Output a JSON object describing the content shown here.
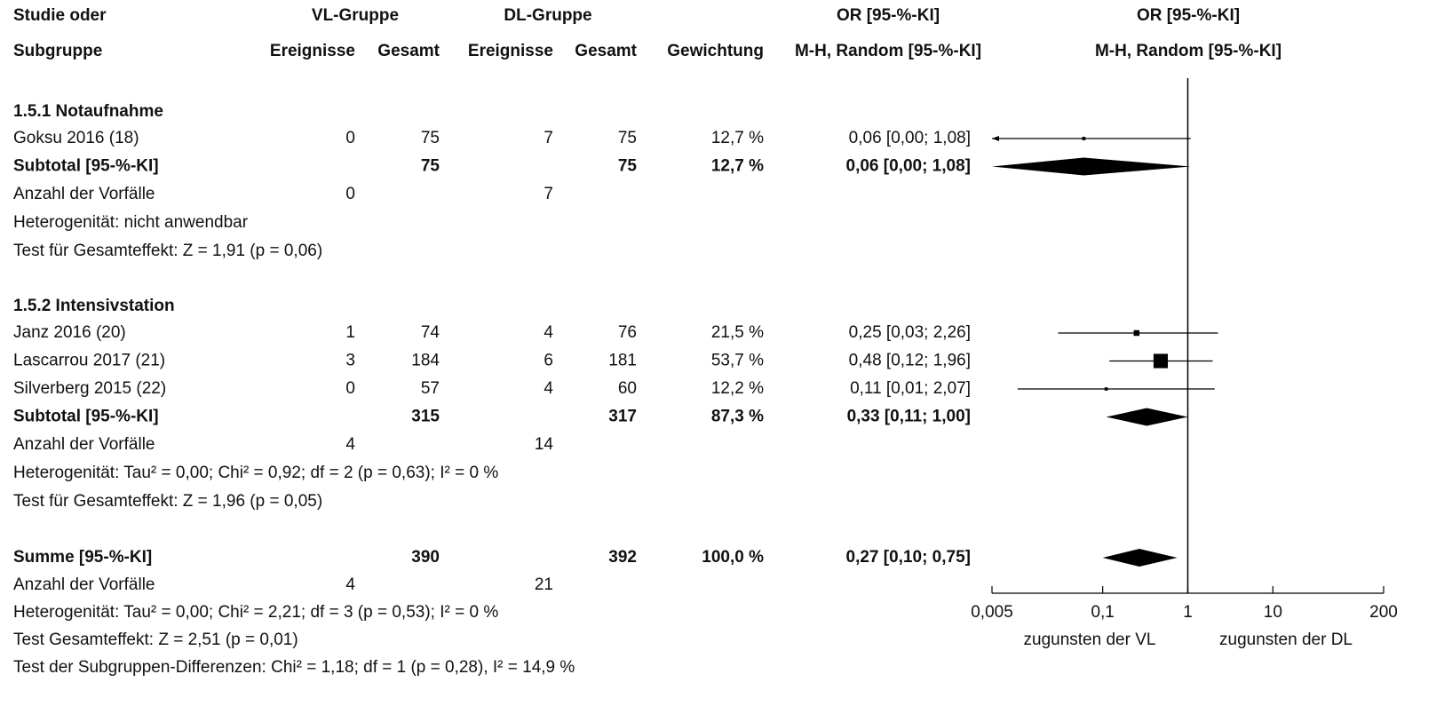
{
  "chart_data": {
    "type": "forest",
    "header": {
      "study": "Studie oder",
      "subgroup": "Subgruppe",
      "vl_group": "VL-Gruppe",
      "dl_group": "DL-Gruppe",
      "events": "Ereignisse",
      "total": "Gesamt",
      "weight": "Gewichtung",
      "or_title": "OR [95-%-KI]",
      "or_method": "M-H, Random [95-%-KI]"
    },
    "groups": [
      {
        "title": "1.5.1 Notaufnahme",
        "studies": [
          {
            "name": "Goksu 2016 (18)",
            "vl_events": 0,
            "vl_total": 75,
            "dl_events": 7,
            "dl_total": 75,
            "weight": 12.7,
            "weight_label": "12,7 %",
            "or": 0.06,
            "ci_low": 0,
            "ci_high": 1.08,
            "or_label": "0,06 [0,00; 1,08]"
          }
        ],
        "subtotal": {
          "name": "Subtotal [95-%-KI]",
          "vl_total": 75,
          "dl_total": 75,
          "weight": 12.7,
          "weight_label": "12,7 %",
          "or": 0.06,
          "ci_low": 0,
          "ci_high": 1.08,
          "or_label": "0,06 [0,00; 1,08]"
        },
        "events": {
          "name": "Anzahl der Vorfälle",
          "vl_events": 0,
          "dl_events": 7
        },
        "heterogeneity": "Heterogenität: nicht anwendbar",
        "effect_test": "Test für Gesamteffekt: Z = 1,91 (p = 0,06)"
      },
      {
        "title": "1.5.2 Intensivstation",
        "studies": [
          {
            "name": "Janz 2016 (20)",
            "vl_events": 1,
            "vl_total": 74,
            "dl_events": 4,
            "dl_total": 76,
            "weight": 21.5,
            "weight_label": "21,5 %",
            "or": 0.25,
            "ci_low": 0.03,
            "ci_high": 2.26,
            "or_label": "0,25 [0,03; 2,26]"
          },
          {
            "name": "Lascarrou 2017 (21)",
            "vl_events": 3,
            "vl_total": 184,
            "dl_events": 6,
            "dl_total": 181,
            "weight": 53.7,
            "weight_label": "53,7 %",
            "or": 0.48,
            "ci_low": 0.12,
            "ci_high": 1.96,
            "or_label": "0,48 [0,12; 1,96]"
          },
          {
            "name": "Silverberg 2015 (22)",
            "vl_events": 0,
            "vl_total": 57,
            "dl_events": 4,
            "dl_total": 60,
            "weight": 12.2,
            "weight_label": "12,2 %",
            "or": 0.11,
            "ci_low": 0.01,
            "ci_high": 2.07,
            "or_label": "0,11 [0,01; 2,07]"
          }
        ],
        "subtotal": {
          "name": "Subtotal [95-%-KI]",
          "vl_total": 315,
          "dl_total": 317,
          "weight": 87.3,
          "weight_label": "87,3 %",
          "or": 0.33,
          "ci_low": 0.11,
          "ci_high": 1.0,
          "or_label": "0,33 [0,11; 1,00]"
        },
        "events": {
          "name": "Anzahl der Vorfälle",
          "vl_events": 4,
          "dl_events": 14
        },
        "heterogeneity": "Heterogenität: Tau² = 0,00; Chi² = 0,92; df = 2 (p = 0,63); I² = 0 %",
        "effect_test": "Test für Gesamteffekt: Z = 1,96 (p = 0,05)"
      }
    ],
    "total": {
      "summary": {
        "name": "Summe [95-%-KI]",
        "vl_total": 390,
        "dl_total": 392,
        "weight": 100.0,
        "weight_label": "100,0 %",
        "or": 0.27,
        "ci_low": 0.1,
        "ci_high": 0.75,
        "or_label": "0,27 [0,10; 0,75]"
      },
      "events": {
        "name": "Anzahl der Vorfälle",
        "vl_events": 4,
        "dl_events": 21
      },
      "heterogeneity": "Heterogenität: Tau² = 0,00; Chi² = 2,21; df = 3 (p = 0,53); I² = 0 %",
      "effect_test": "Test Gesamteffekt: Z = 2,51 (p = 0,01)",
      "subgroup_test": "Test der Subgruppen-Differenzen: Chi² = 1,18; df = 1 (p = 0,28), I² = 14,9 %"
    },
    "xlog": true,
    "xlim": [
      0.005,
      200
    ],
    "xticks": [
      {
        "value": 0.005,
        "label": "0,005"
      },
      {
        "value": 0.1,
        "label": "0,1"
      },
      1,
      10,
      200
    ],
    "favours_left": "zugunsten der VL",
    "favours_right": "zugunsten der DL",
    "color": "#000000"
  }
}
